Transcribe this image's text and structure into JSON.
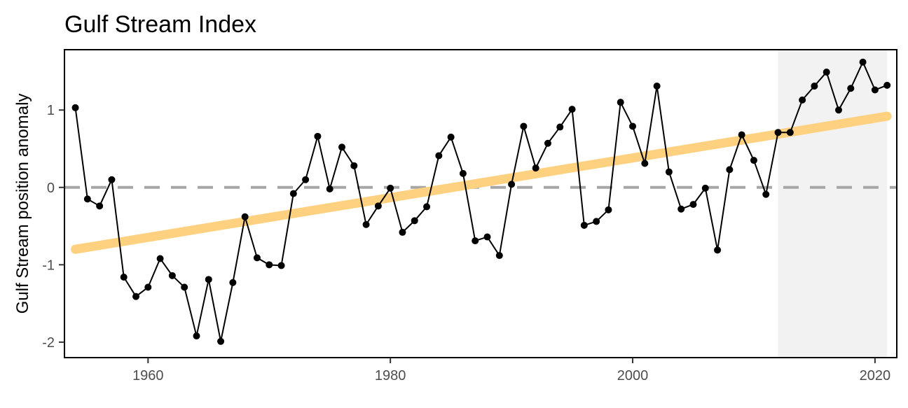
{
  "chart_data": {
    "type": "line",
    "title": "Gulf Stream Index",
    "xlabel": "",
    "ylabel": "Gulf Stream position anomaly",
    "xlim": [
      1953.1,
      2021.8
    ],
    "ylim": [
      -2.2,
      1.78
    ],
    "x_ticks": [
      1960,
      1980,
      2000,
      2020
    ],
    "x_tick_labels": [
      "1960",
      "1980",
      "2000",
      "2020"
    ],
    "y_ticks": [
      -2,
      -1,
      0,
      1
    ],
    "y_tick_labels": [
      "-2",
      "-1",
      "0",
      "1"
    ],
    "reference_line": {
      "y": 0,
      "style": "dashed",
      "color": "#a6a6a6"
    },
    "highlight_range": {
      "x": [
        2012,
        2021
      ],
      "color": "#f2f2f2"
    },
    "trend_line": {
      "x": [
        1954,
        2021
      ],
      "y": [
        -0.8,
        0.92
      ],
      "color": "#fdd17f"
    },
    "grid": false,
    "series": [
      {
        "color": "#000000",
        "x": [
          1954,
          1955,
          1956,
          1957,
          1958,
          1959,
          1960,
          1961,
          1962,
          1963,
          1964,
          1965,
          1966,
          1967,
          1968,
          1969,
          1970,
          1971,
          1972,
          1973,
          1974,
          1975,
          1976,
          1977,
          1978,
          1979,
          1980,
          1981,
          1982,
          1983,
          1984,
          1985,
          1986,
          1987,
          1988,
          1989,
          1990,
          1991,
          1992,
          1993,
          1994,
          1995,
          1996,
          1997,
          1998,
          1999,
          2000,
          2001,
          2002,
          2003,
          2004,
          2005,
          2006,
          2007,
          2008,
          2009,
          2010,
          2011,
          2012,
          2013,
          2014,
          2015,
          2016,
          2017,
          2018,
          2019,
          2020,
          2021
        ],
        "y": [
          1.03,
          -0.15,
          -0.24,
          0.1,
          -1.16,
          -1.41,
          -1.29,
          -0.92,
          -1.14,
          -1.29,
          -1.92,
          -1.19,
          -1.99,
          -1.23,
          -0.38,
          -0.91,
          -1.0,
          -1.01,
          -0.08,
          0.1,
          0.66,
          -0.02,
          0.52,
          0.28,
          -0.48,
          -0.24,
          -0.01,
          -0.58,
          -0.43,
          -0.25,
          0.41,
          0.65,
          0.18,
          -0.69,
          -0.64,
          -0.88,
          0.04,
          0.79,
          0.25,
          0.57,
          0.78,
          1.01,
          -0.49,
          -0.44,
          -0.29,
          1.1,
          0.79,
          0.31,
          1.31,
          0.2,
          -0.28,
          -0.22,
          -0.01,
          -0.81,
          0.23,
          0.68,
          0.35,
          -0.09,
          0.71,
          0.71,
          1.13,
          1.31,
          1.49,
          1.0,
          1.28,
          1.62,
          1.26,
          1.32
        ]
      }
    ]
  }
}
